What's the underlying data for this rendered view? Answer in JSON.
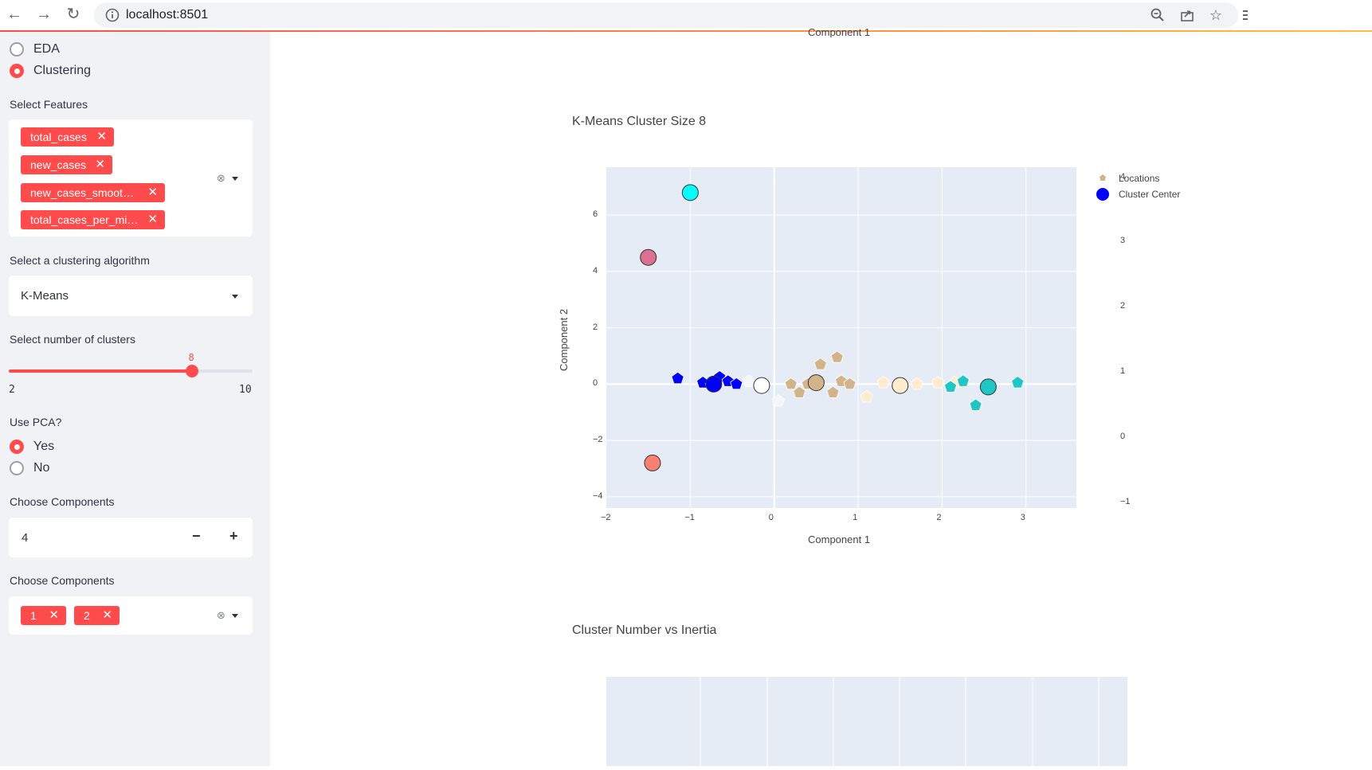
{
  "browser": {
    "url": "localhost:8501"
  },
  "sidebar": {
    "page_options": [
      {
        "label": "EDA",
        "selected": false
      },
      {
        "label": "Clustering",
        "selected": true
      }
    ],
    "features": {
      "label": "Select Features",
      "tags": [
        "total_cases",
        "new_cases",
        "new_cases_smoot…",
        "total_cases_per_mi…"
      ]
    },
    "algorithm": {
      "label": "Select a clustering algorithm",
      "value": "K-Means"
    },
    "clusters": {
      "label": "Select number of clusters",
      "min": "2",
      "max": "10",
      "value": 8
    },
    "pca": {
      "label": "Use PCA?",
      "options": [
        {
          "label": "Yes",
          "selected": true
        },
        {
          "label": "No",
          "selected": false
        }
      ]
    },
    "components_count": {
      "label": "Choose Components",
      "value": "4",
      "minus": "−",
      "plus": "+"
    },
    "components_select": {
      "label": "Choose Components",
      "tags": [
        "1",
        "2"
      ]
    }
  },
  "main": {
    "prev_chart_xlabel": "Component 1",
    "inertia_title": "Cluster Number vs Inertia"
  },
  "chart_data": {
    "type": "scatter",
    "title": "K-Means Cluster Size 8",
    "xlabel": "Component 1",
    "ylabel": "Component 2",
    "xlim": [
      -2,
      3.6
    ],
    "ylim": [
      -4.4,
      7.7
    ],
    "x_ticks": [
      "−2",
      "−1",
      "0",
      "1",
      "2",
      "3"
    ],
    "y_ticks": [
      "6",
      "4",
      "2",
      "0",
      "−2",
      "−4"
    ],
    "colorbar_ticks": [
      "4",
      "3",
      "2",
      "1",
      "0",
      "−1"
    ],
    "grid": true,
    "legend_position": "top-right",
    "legend": [
      {
        "name": "Locations",
        "color": "#d2b48c"
      },
      {
        "name": "Cluster Center",
        "color": "#0000ff"
      }
    ],
    "cluster_centers": [
      {
        "x": -1.0,
        "y": 6.8,
        "color": "#00ffff"
      },
      {
        "x": -1.5,
        "y": 4.5,
        "color": "#db7093"
      },
      {
        "x": -0.72,
        "y": 0.0,
        "color": "#0000ff"
      },
      {
        "x": -0.15,
        "y": -0.05,
        "color": "#ffffff"
      },
      {
        "x": 0.5,
        "y": 0.05,
        "color": "#d2b48c"
      },
      {
        "x": 1.5,
        "y": -0.05,
        "color": "#ffebcd"
      },
      {
        "x": 2.55,
        "y": -0.1,
        "color": "#20c5c5"
      },
      {
        "x": -1.45,
        "y": -2.8,
        "color": "#fa8072"
      }
    ],
    "locations": [
      {
        "x": -1.15,
        "y": 0.2,
        "color": "#0000ff"
      },
      {
        "x": -0.85,
        "y": 0.05,
        "color": "#0000ff"
      },
      {
        "x": -0.65,
        "y": 0.25,
        "color": "#0000ff"
      },
      {
        "x": -0.55,
        "y": 0.1,
        "color": "#0000ff"
      },
      {
        "x": -0.75,
        "y": -0.05,
        "color": "#0000ff"
      },
      {
        "x": -0.45,
        "y": 0.0,
        "color": "#0000ff"
      },
      {
        "x": -0.3,
        "y": 0.1,
        "color": "#f4f6fb"
      },
      {
        "x": 0.05,
        "y": -0.6,
        "color": "#f4f6fb"
      },
      {
        "x": 0.2,
        "y": 0.0,
        "color": "#d2b48c"
      },
      {
        "x": 0.4,
        "y": 0.0,
        "color": "#d2b48c"
      },
      {
        "x": 0.55,
        "y": 0.7,
        "color": "#d2b48c"
      },
      {
        "x": 0.75,
        "y": 0.95,
        "color": "#d2b48c"
      },
      {
        "x": 0.7,
        "y": -0.3,
        "color": "#d2b48c"
      },
      {
        "x": 0.8,
        "y": 0.1,
        "color": "#d2b48c"
      },
      {
        "x": 0.9,
        "y": 0.0,
        "color": "#d2b48c"
      },
      {
        "x": 0.3,
        "y": -0.3,
        "color": "#d2b48c"
      },
      {
        "x": 1.1,
        "y": -0.45,
        "color": "#ffebcd"
      },
      {
        "x": 1.3,
        "y": 0.05,
        "color": "#ffebcd"
      },
      {
        "x": 1.7,
        "y": 0.0,
        "color": "#ffebcd"
      },
      {
        "x": 1.95,
        "y": 0.05,
        "color": "#ffebcd"
      },
      {
        "x": 2.15,
        "y": 0.05,
        "color": "#ffebcd"
      },
      {
        "x": 2.25,
        "y": 0.1,
        "color": "#20c5c5"
      },
      {
        "x": 2.4,
        "y": -0.75,
        "color": "#20c5c5"
      },
      {
        "x": 2.9,
        "y": 0.05,
        "color": "#20c5c5"
      },
      {
        "x": 2.1,
        "y": -0.1,
        "color": "#20c5c5"
      }
    ]
  }
}
